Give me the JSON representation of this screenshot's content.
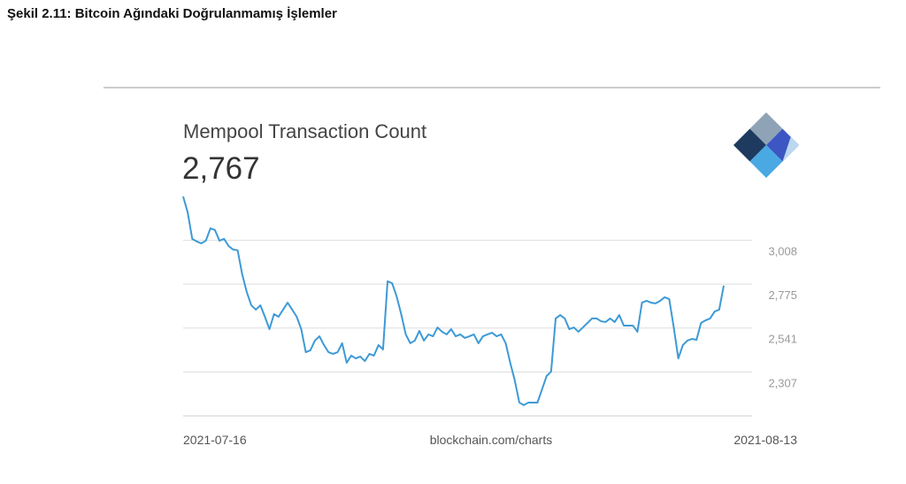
{
  "caption": "Şekil 2.11: Bitcoin Ağındaki Doğrulanmamış İşlemler",
  "chart_data": {
    "type": "line",
    "title": "Mempool Transaction Count",
    "headline": {
      "value": 2767,
      "label": "2,767"
    },
    "source": "blockchain.com/charts",
    "x_labels": [
      "2021-07-16",
      "2021-08-13"
    ],
    "color": "#3d9ad6",
    "grid": true,
    "ylim": [
      2073,
      3242
    ],
    "yticks": [
      {
        "value": 3008,
        "label": "3,008"
      },
      {
        "value": 2775,
        "label": "2,775"
      },
      {
        "value": 2541,
        "label": "2,541"
      },
      {
        "value": 2307,
        "label": "2,307"
      }
    ],
    "values": [
      3242,
      3157,
      3016,
      3002,
      2992,
      3006,
      3072,
      3063,
      3006,
      3016,
      2978,
      2959,
      2955,
      2827,
      2733,
      2662,
      2639,
      2662,
      2601,
      2535,
      2615,
      2601,
      2639,
      2676,
      2639,
      2601,
      2535,
      2412,
      2422,
      2474,
      2497,
      2450,
      2412,
      2403,
      2412,
      2460,
      2356,
      2394,
      2379,
      2389,
      2365,
      2403,
      2394,
      2450,
      2427,
      2790,
      2780,
      2709,
      2615,
      2507,
      2460,
      2474,
      2526,
      2474,
      2507,
      2497,
      2544,
      2521,
      2507,
      2535,
      2497,
      2507,
      2488,
      2497,
      2507,
      2460,
      2497,
      2507,
      2516,
      2497,
      2507,
      2460,
      2356,
      2262,
      2144,
      2130,
      2144,
      2144,
      2144,
      2214,
      2285,
      2309,
      2592,
      2610,
      2592,
      2535,
      2544,
      2521,
      2544,
      2568,
      2592,
      2592,
      2577,
      2573,
      2592,
      2573,
      2610,
      2554,
      2554,
      2554,
      2521,
      2676,
      2686,
      2676,
      2672,
      2686,
      2705,
      2695,
      2544,
      2379,
      2450,
      2474,
      2483,
      2478,
      2568,
      2582,
      2592,
      2629,
      2639,
      2767
    ]
  }
}
